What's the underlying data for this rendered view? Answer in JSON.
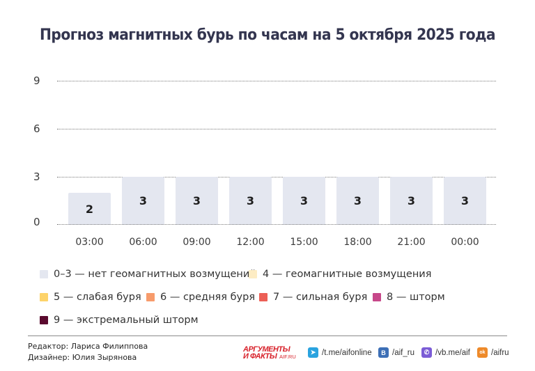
{
  "header": {
    "title": "Прогноз магнитных бурь по часам на 5 октября 2025 года"
  },
  "chart_data": {
    "type": "bar",
    "title": "Прогноз магнитных бурь по часам на 5 октября 2025 года",
    "xlabel": "",
    "ylabel": "",
    "categories": [
      "03:00",
      "06:00",
      "09:00",
      "12:00",
      "15:00",
      "18:00",
      "21:00",
      "00:00"
    ],
    "values": [
      2,
      3,
      3,
      3,
      3,
      3,
      3,
      3
    ],
    "ylim": [
      0,
      9
    ],
    "yticks": [
      "0",
      "3",
      "6",
      "9"
    ],
    "grid": true,
    "grid_style": "dotted",
    "bar_color": "#e4e7f0",
    "data_labels": [
      "2",
      "3",
      "3",
      "3",
      "3",
      "3",
      "3",
      "3"
    ],
    "legend_position": "bottom",
    "legend": [
      {
        "label": "0–3 — нет геомагнитных возмущений",
        "color": "#e4e7f0"
      },
      {
        "label": "4 — геомагнитные возмущения",
        "color": "#fdecc4"
      },
      {
        "label": "5 — слабая буря",
        "color": "#fdd36a"
      },
      {
        "label": "6 — средняя буря",
        "color": "#f79b6b"
      },
      {
        "label": "7 — сильная буря",
        "color": "#ec5f56"
      },
      {
        "label": "8 — шторм",
        "color": "#c7488a"
      },
      {
        "label": "9 — экстремальный шторм",
        "color": "#5a0a2e"
      }
    ]
  },
  "footer": {
    "editor": "Редактор: Лариса Филиппова",
    "designer": "Дизайнер: Юлия Зырянова",
    "logo": {
      "line1": "АРГУМЕНТЫ",
      "line2": "И ФАКТЫ",
      "site": "AIF.RU"
    },
    "socials": [
      {
        "icon": "telegram-icon",
        "label": "/t.me/aifonline",
        "color": "#2aa3df",
        "glyph": "➤"
      },
      {
        "icon": "vk-icon",
        "label": "/aif_ru",
        "color": "#3d6fb6",
        "glyph": "B"
      },
      {
        "icon": "viber-icon",
        "label": "/vb.me/aif",
        "color": "#7b5cd6",
        "glyph": "✆"
      },
      {
        "icon": "odnoklassniki-icon",
        "label": "/aifru",
        "color": "#ee8a2a",
        "glyph": "ok"
      }
    ]
  }
}
